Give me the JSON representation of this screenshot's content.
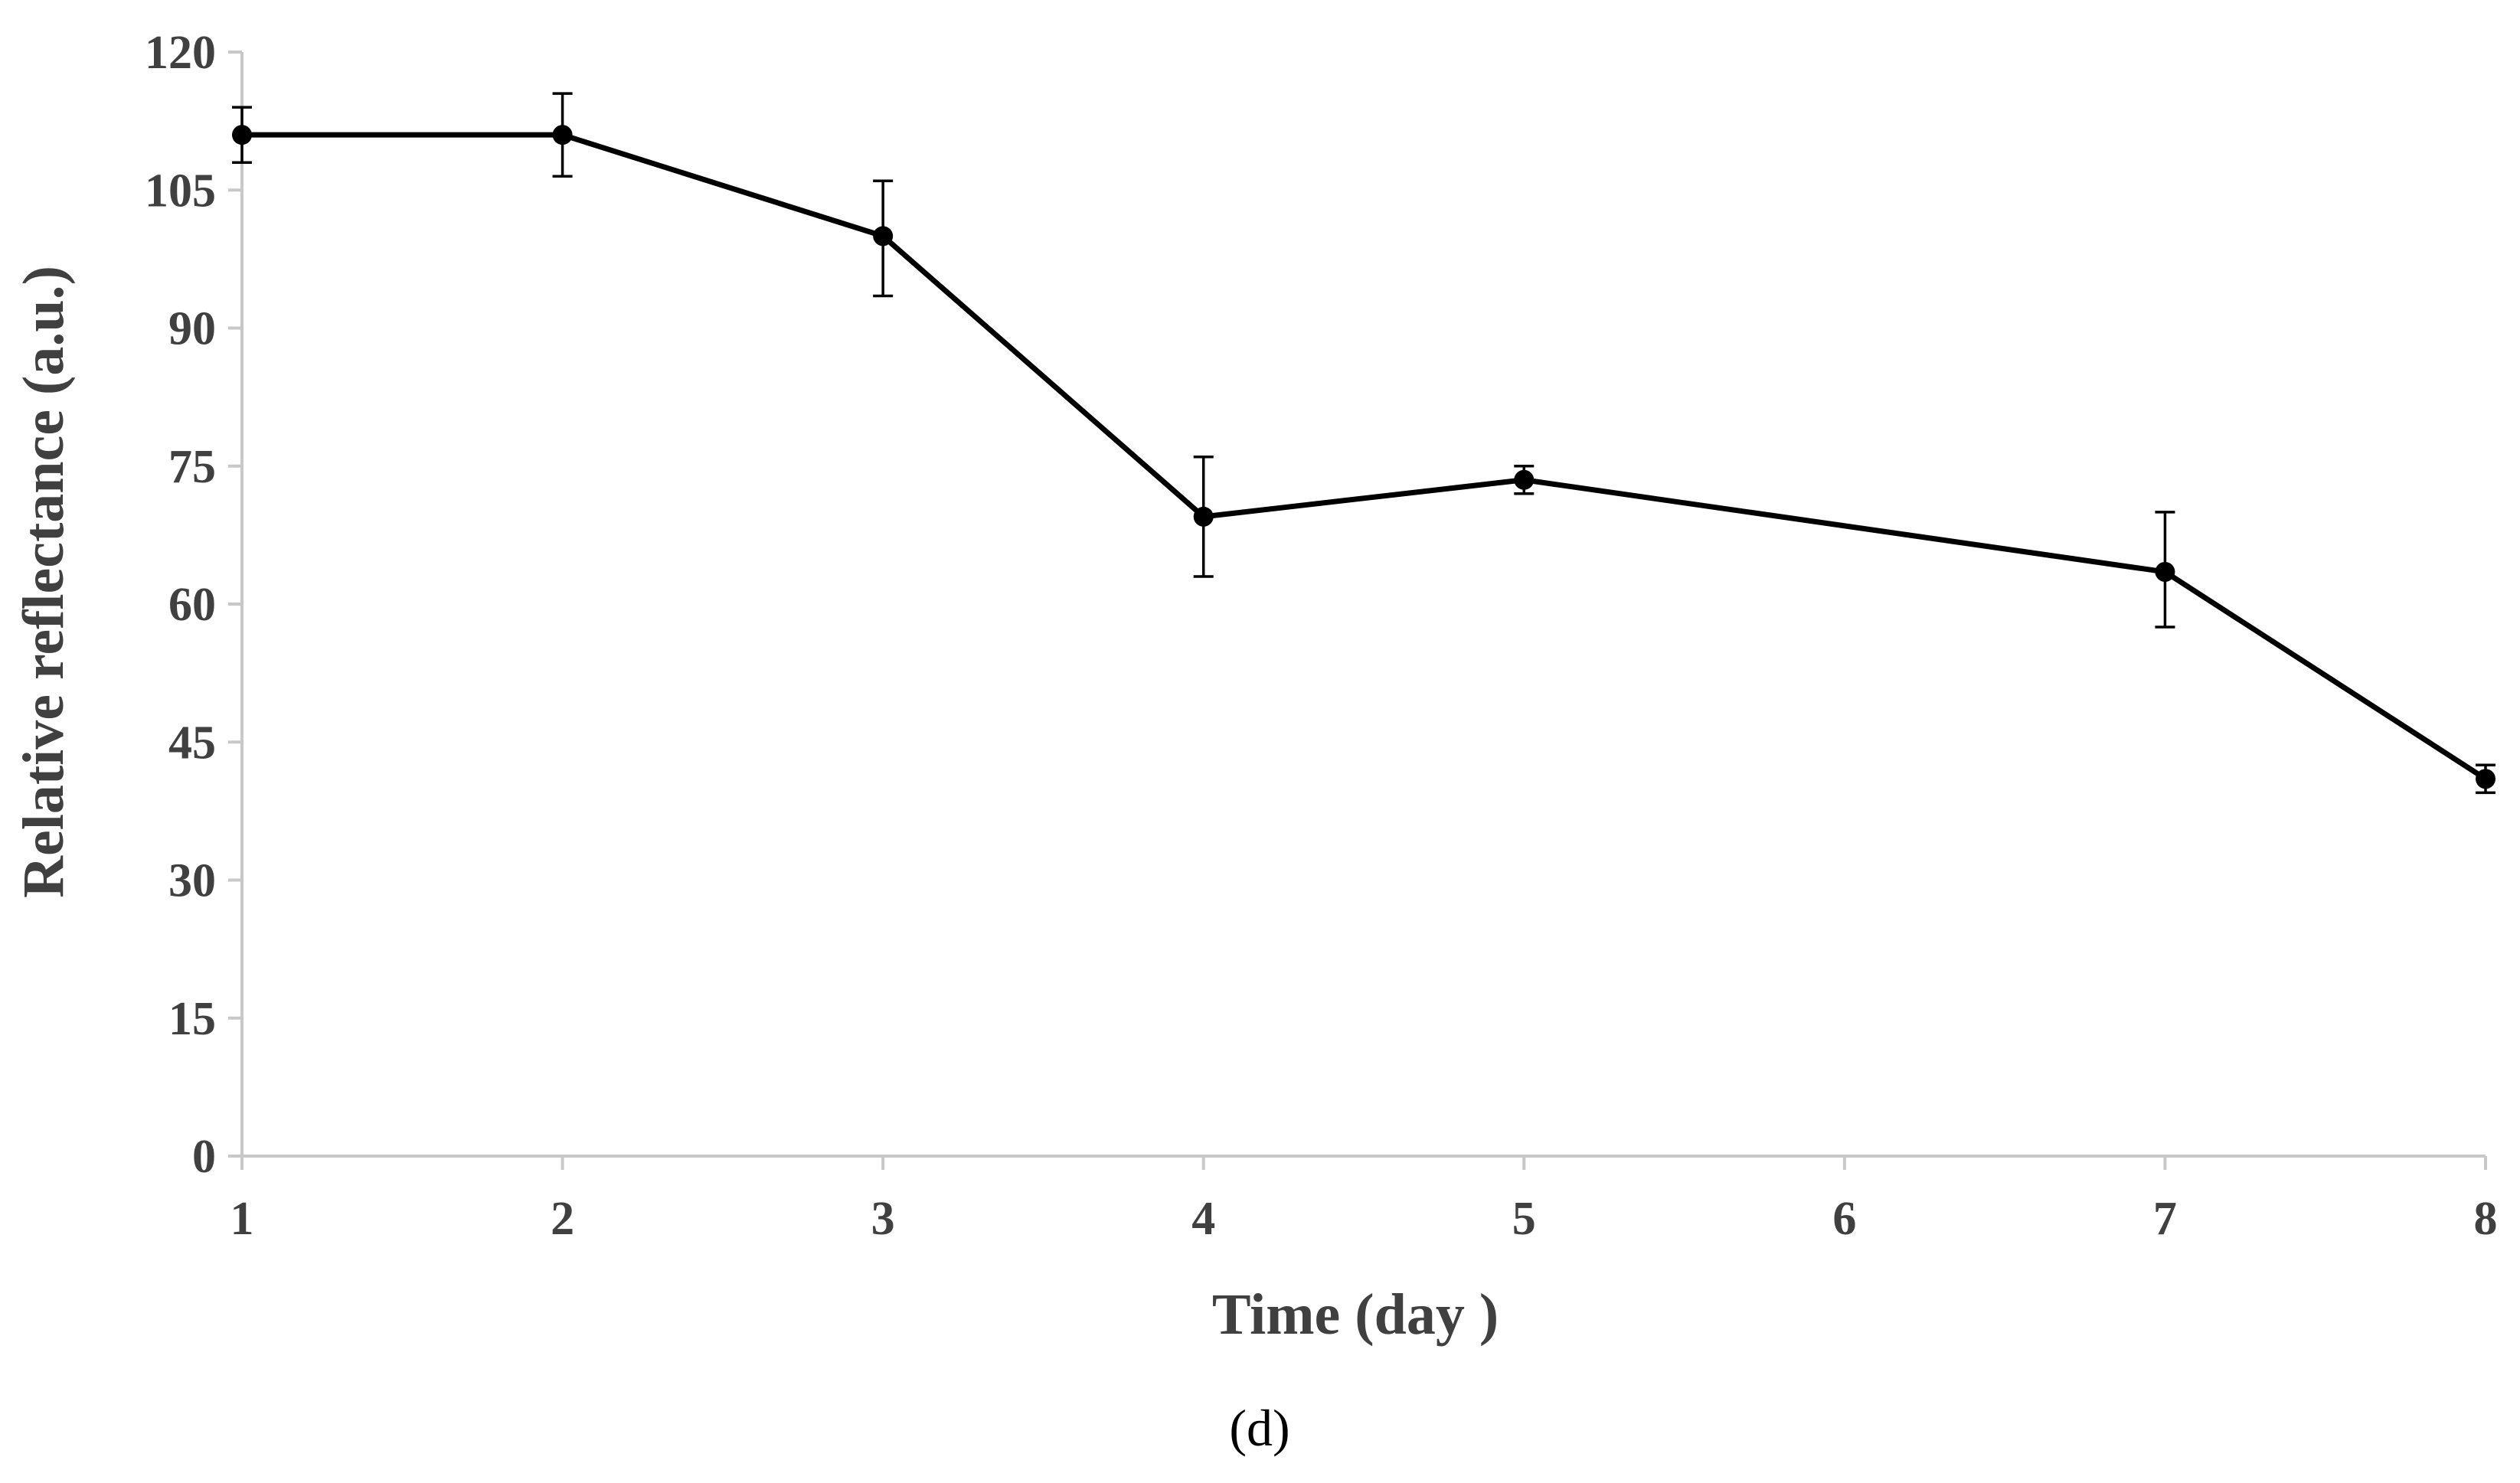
{
  "chart_data": {
    "type": "line",
    "title": "",
    "xlabel": "Time (day )",
    "ylabel": "Relative reflectance (a.u.)",
    "panel_label": "(d)",
    "categories": [
      "1",
      "2",
      "3",
      "4",
      "5",
      "6",
      "7",
      "8"
    ],
    "yticks": [
      "0",
      "15",
      "30",
      "45",
      "60",
      "75",
      "90",
      "105",
      "120"
    ],
    "ylim": [
      0,
      120
    ],
    "grid": false,
    "legend": "none",
    "series": [
      {
        "name": "Relative reflectance",
        "color": "#000000",
        "points": [
          {
            "x": "1",
            "y": 111,
            "err_plus": 3,
            "err_minus": 3
          },
          {
            "x": "2",
            "y": 111,
            "err_plus": 4.5,
            "err_minus": 4.5
          },
          {
            "x": "3",
            "y": 100,
            "err_plus": 6,
            "err_minus": 6.5
          },
          {
            "x": "4",
            "y": 69.5,
            "err_plus": 6.5,
            "err_minus": 6.5
          },
          {
            "x": "5",
            "y": 73.5,
            "err_plus": 1.5,
            "err_minus": 1.5
          },
          {
            "x": "7",
            "y": 63.5,
            "err_plus": 6.5,
            "err_minus": 6
          },
          {
            "x": "8",
            "y": 41,
            "err_plus": 1.5,
            "err_minus": 1.5
          }
        ]
      }
    ]
  },
  "colors": {
    "axis": "#c8c8c8",
    "text": "#404040",
    "series": "#000000"
  }
}
